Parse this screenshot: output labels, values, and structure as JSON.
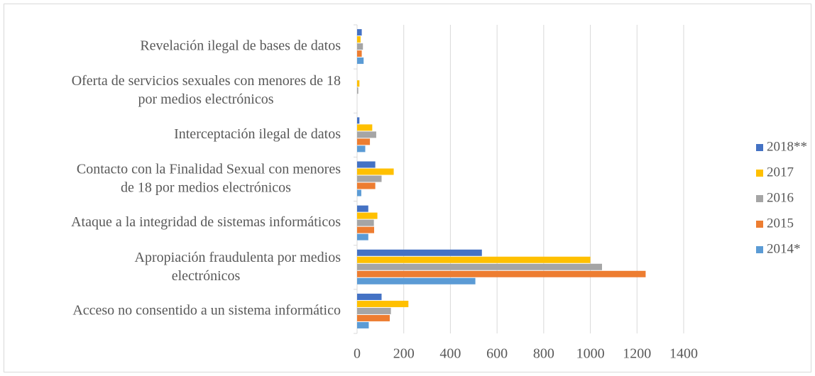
{
  "chart_data": {
    "type": "hbar",
    "categories": [
      "Revelación ilegal de bases de datos",
      "Oferta de servicios sexuales con menores de 18 por medios electrónicos",
      "Interceptación ilegal de datos",
      "Contacto con la Finalidad Sexual con menores de 18 por medios electrónicos",
      "Ataque a la integridad de sistemas informáticos",
      "Apropiación fraudulenta por medios electrónicos",
      "Acceso no consentido a un sistema informático"
    ],
    "series": [
      {
        "name": "2018**",
        "color": "#4472c4",
        "values": [
          20,
          0,
          10,
          78,
          48,
          535,
          105
        ]
      },
      {
        "name": "2017",
        "color": "#ffc000",
        "values": [
          15,
          10,
          65,
          157,
          87,
          1000,
          220
        ]
      },
      {
        "name": "2016",
        "color": "#a5a5a5",
        "values": [
          25,
          5,
          82,
          105,
          72,
          1050,
          145
        ]
      },
      {
        "name": "2015",
        "color": "#ed7d31",
        "values": [
          20,
          0,
          55,
          78,
          73,
          1237,
          140
        ]
      },
      {
        "name": "2014*",
        "color": "#5b9bd5",
        "values": [
          28,
          0,
          35,
          18,
          48,
          507,
          50
        ]
      }
    ],
    "xlim": [
      0,
      1400
    ],
    "xticks": [
      0,
      200,
      400,
      600,
      800,
      1000,
      1200,
      1400
    ],
    "grid": true,
    "legend": "right"
  }
}
